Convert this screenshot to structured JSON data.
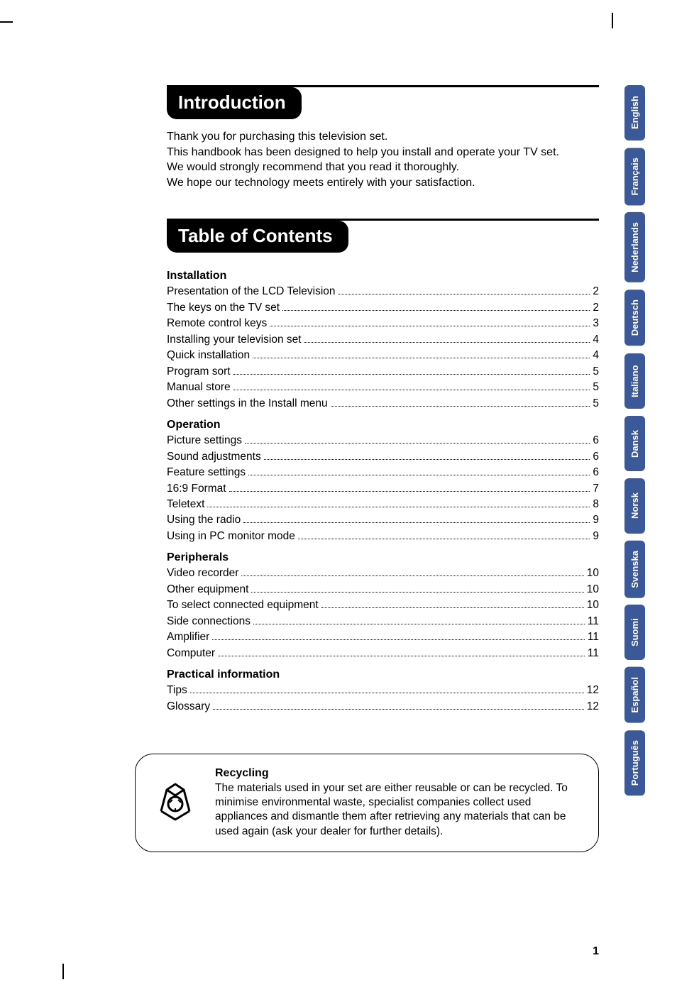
{
  "colors": {
    "tab_bg": "#3b5998",
    "tab_fg": "#ffffff",
    "header_bg": "#000000",
    "header_fg": "#ffffff",
    "page_bg": "#ffffff",
    "text": "#000000"
  },
  "langs": [
    "English",
    "Français",
    "Nederlands",
    "Deutsch",
    "Italiano",
    "Dansk",
    "Norsk",
    "Svenska",
    "Suomi",
    "Español",
    "Português"
  ],
  "intro": {
    "heading": "Introduction",
    "lines": [
      "Thank you for purchasing this television set.",
      "This handbook has been designed to help you install and operate your TV set.",
      "We would strongly recommend that you read it thoroughly.",
      "We hope our technology meets entirely with your satisfaction."
    ]
  },
  "toc": {
    "heading": "Table of Contents",
    "groups": [
      {
        "title": "Installation",
        "items": [
          {
            "label": "Presentation of the LCD Television",
            "page": "2"
          },
          {
            "label": "The keys on the TV set",
            "page": "2"
          },
          {
            "label": "Remote control keys",
            "page": "3"
          },
          {
            "label": "Installing your television set",
            "page": "4"
          },
          {
            "label": "Quick installation",
            "page": "4"
          },
          {
            "label": "Program sort",
            "page": "5"
          },
          {
            "label": "Manual store",
            "page": "5"
          },
          {
            "label": "Other settings in the Install menu",
            "page": "5"
          }
        ]
      },
      {
        "title": "Operation",
        "items": [
          {
            "label": "Picture settings",
            "page": "6"
          },
          {
            "label": "Sound adjustments",
            "page": "6"
          },
          {
            "label": "Feature settings",
            "page": "6"
          },
          {
            "label": "16:9 Format",
            "page": "7"
          },
          {
            "label": "Teletext",
            "page": "8"
          },
          {
            "label": "Using the radio",
            "page": "9"
          },
          {
            "label": "Using in PC monitor mode",
            "page": "9"
          }
        ]
      },
      {
        "title": "Peripherals",
        "items": [
          {
            "label": "Video recorder",
            "page": "10"
          },
          {
            "label": "Other equipment",
            "page": "10"
          },
          {
            "label": "To select connected equipment",
            "page": "10"
          },
          {
            "label": "Side connections",
            "page": "11"
          },
          {
            "label": "Amplifier",
            "page": "11"
          },
          {
            "label": "Computer",
            "page": "11"
          }
        ]
      },
      {
        "title": "Practical information",
        "items": [
          {
            "label": "Tips",
            "page": "12"
          },
          {
            "label": "Glossary",
            "page": "12"
          }
        ]
      }
    ]
  },
  "recycling": {
    "title": "Recycling",
    "body": "The materials used in your set are either reusable or can be recycled. To minimise environmental waste, specialist companies collect used appliances and dismantle them after retrieving any materials that can be used again (ask your dealer for further details)."
  },
  "page_number": "1"
}
